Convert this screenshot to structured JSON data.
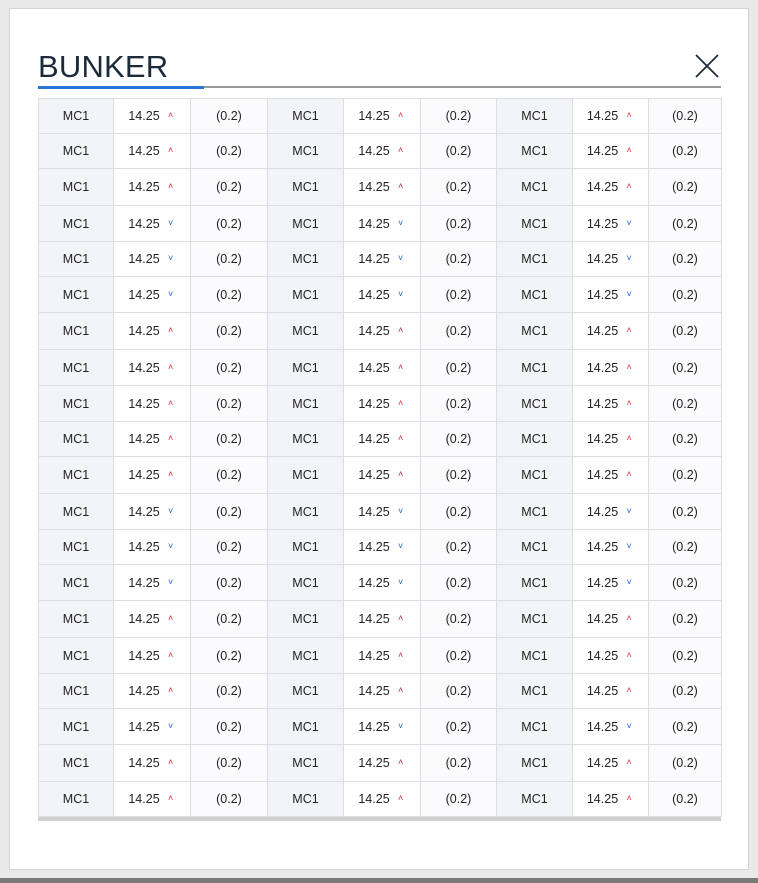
{
  "modal": {
    "title": "BUNKER",
    "accent_color": "#2a73d8",
    "close_icon": "close-icon"
  },
  "table": {
    "columns_per_group": [
      "code",
      "price",
      "change"
    ],
    "groups": 3,
    "colors": {
      "up": "#d9272d",
      "down": "#1f5fd0"
    },
    "rows": [
      {
        "code": "MC1",
        "price": "14.25",
        "dir": "up",
        "change": "(0.2)"
      },
      {
        "code": "MC1",
        "price": "14.25",
        "dir": "up",
        "change": "(0.2)"
      },
      {
        "code": "MC1",
        "price": "14.25",
        "dir": "up",
        "change": "(0.2)"
      },
      {
        "code": "MC1",
        "price": "14.25",
        "dir": "down",
        "change": "(0.2)"
      },
      {
        "code": "MC1",
        "price": "14.25",
        "dir": "down",
        "change": "(0.2)"
      },
      {
        "code": "MC1",
        "price": "14.25",
        "dir": "down",
        "change": "(0.2)"
      },
      {
        "code": "MC1",
        "price": "14.25",
        "dir": "up",
        "change": "(0.2)"
      },
      {
        "code": "MC1",
        "price": "14.25",
        "dir": "up",
        "change": "(0.2)"
      },
      {
        "code": "MC1",
        "price": "14.25",
        "dir": "up",
        "change": "(0.2)"
      },
      {
        "code": "MC1",
        "price": "14.25",
        "dir": "up",
        "change": "(0.2)"
      },
      {
        "code": "MC1",
        "price": "14.25",
        "dir": "up",
        "change": "(0.2)"
      },
      {
        "code": "MC1",
        "price": "14.25",
        "dir": "down",
        "change": "(0.2)"
      },
      {
        "code": "MC1",
        "price": "14.25",
        "dir": "down",
        "change": "(0.2)"
      },
      {
        "code": "MC1",
        "price": "14.25",
        "dir": "down",
        "change": "(0.2)"
      },
      {
        "code": "MC1",
        "price": "14.25",
        "dir": "up",
        "change": "(0.2)"
      },
      {
        "code": "MC1",
        "price": "14.25",
        "dir": "up",
        "change": "(0.2)"
      },
      {
        "code": "MC1",
        "price": "14.25",
        "dir": "up",
        "change": "(0.2)"
      },
      {
        "code": "MC1",
        "price": "14.25",
        "dir": "down",
        "change": "(0.2)"
      },
      {
        "code": "MC1",
        "price": "14.25",
        "dir": "up",
        "change": "(0.2)"
      },
      {
        "code": "MC1",
        "price": "14.25",
        "dir": "up",
        "change": "(0.2)"
      }
    ]
  }
}
